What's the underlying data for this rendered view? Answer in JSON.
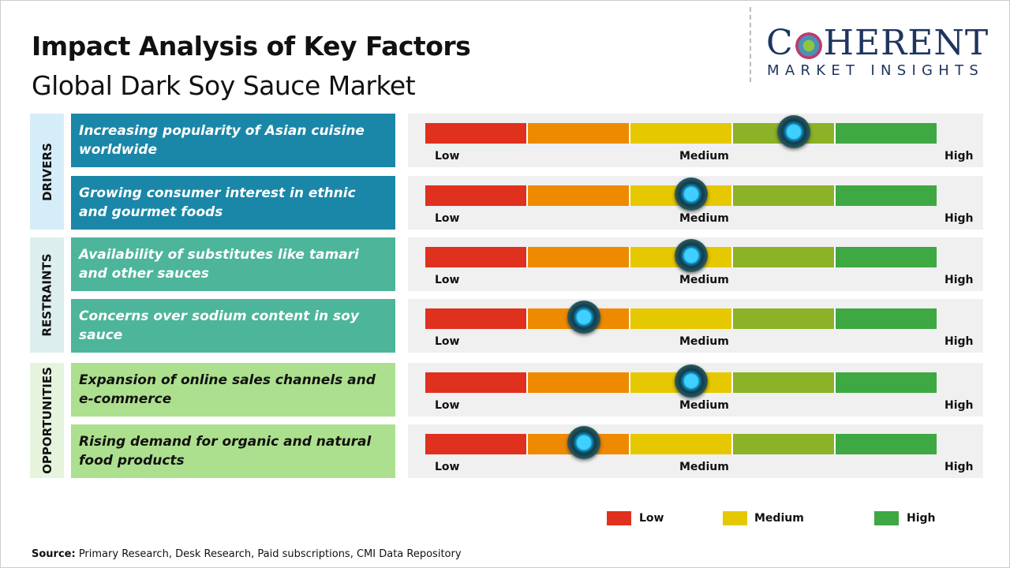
{
  "header": {
    "title": "Impact Analysis of Key Factors",
    "subtitle": "Global Dark Soy Sauce Market"
  },
  "logo": {
    "top_left": "C",
    "top_right": "HERENT",
    "bottom": "MARKET INSIGHTS"
  },
  "scale": {
    "low": "Low",
    "medium": "Medium",
    "high": "High",
    "segment_colors": [
      "#e0301e",
      "#ee8a00",
      "#e6c800",
      "#8cb227",
      "#3ea842"
    ]
  },
  "groups": [
    {
      "label": "DRIVERS",
      "label_bg": "#d5edf8",
      "box_color": "#1a87a8",
      "text_color": "#ffffff",
      "factors": [
        {
          "text": "Increasing popularity of Asian cuisine worldwide",
          "impact": 0.72
        },
        {
          "text": "Growing consumer interest in ethnic and gourmet foods",
          "impact": 0.52
        }
      ]
    },
    {
      "label": "RESTRAINTS",
      "label_bg": "#dcefee",
      "box_color": "#4db59a",
      "text_color": "#ffffff",
      "factors": [
        {
          "text": "Availability of substitutes like tamari and other sauces",
          "impact": 0.52
        },
        {
          "text": "Concerns over sodium content in soy sauce",
          "impact": 0.31
        }
      ]
    },
    {
      "label": "OPPORTUNITIES",
      "label_bg": "#e6f4de",
      "box_color": "#ade08e",
      "text_color": "#111111",
      "factors": [
        {
          "text": "Expansion of online sales channels and e-commerce",
          "impact": 0.52
        },
        {
          "text": "Rising demand for organic and natural food products",
          "impact": 0.31
        }
      ]
    }
  ],
  "legend": [
    {
      "label": "Low",
      "color": "#e0301e"
    },
    {
      "label": "Medium",
      "color": "#e6c800"
    },
    {
      "label": "High",
      "color": "#3ea842"
    }
  ],
  "footer": {
    "source_label": "Source:",
    "source_text": " Primary Research, Desk Research, Paid subscriptions, CMI Data Repository"
  }
}
